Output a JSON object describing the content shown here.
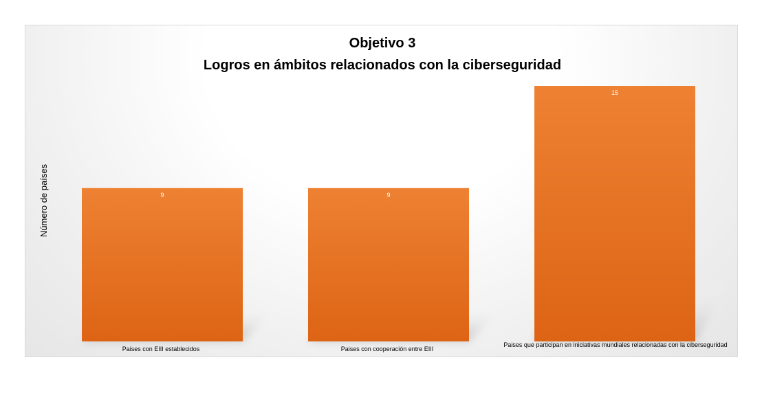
{
  "chart_data": {
    "type": "bar",
    "title": [
      "Objetivo 3",
      "Logros en ámbitos relacionados con la ciberseguridad"
    ],
    "ylabel": "Número de países",
    "xlabel": "",
    "categories": [
      "Paises con EIII establecidos",
      "Paises con cooperación entre EIII",
      "Paises que participan en iniciativas mundiales relacionadas con la ciberseguridad"
    ],
    "values": [
      9,
      9,
      15
    ],
    "ylim": [
      0,
      15
    ],
    "grid": false,
    "legend": false,
    "colors": {
      "bar_top": "#ee8133",
      "bar_bottom": "#dd6414",
      "shadow": "#bdbdbd"
    }
  }
}
